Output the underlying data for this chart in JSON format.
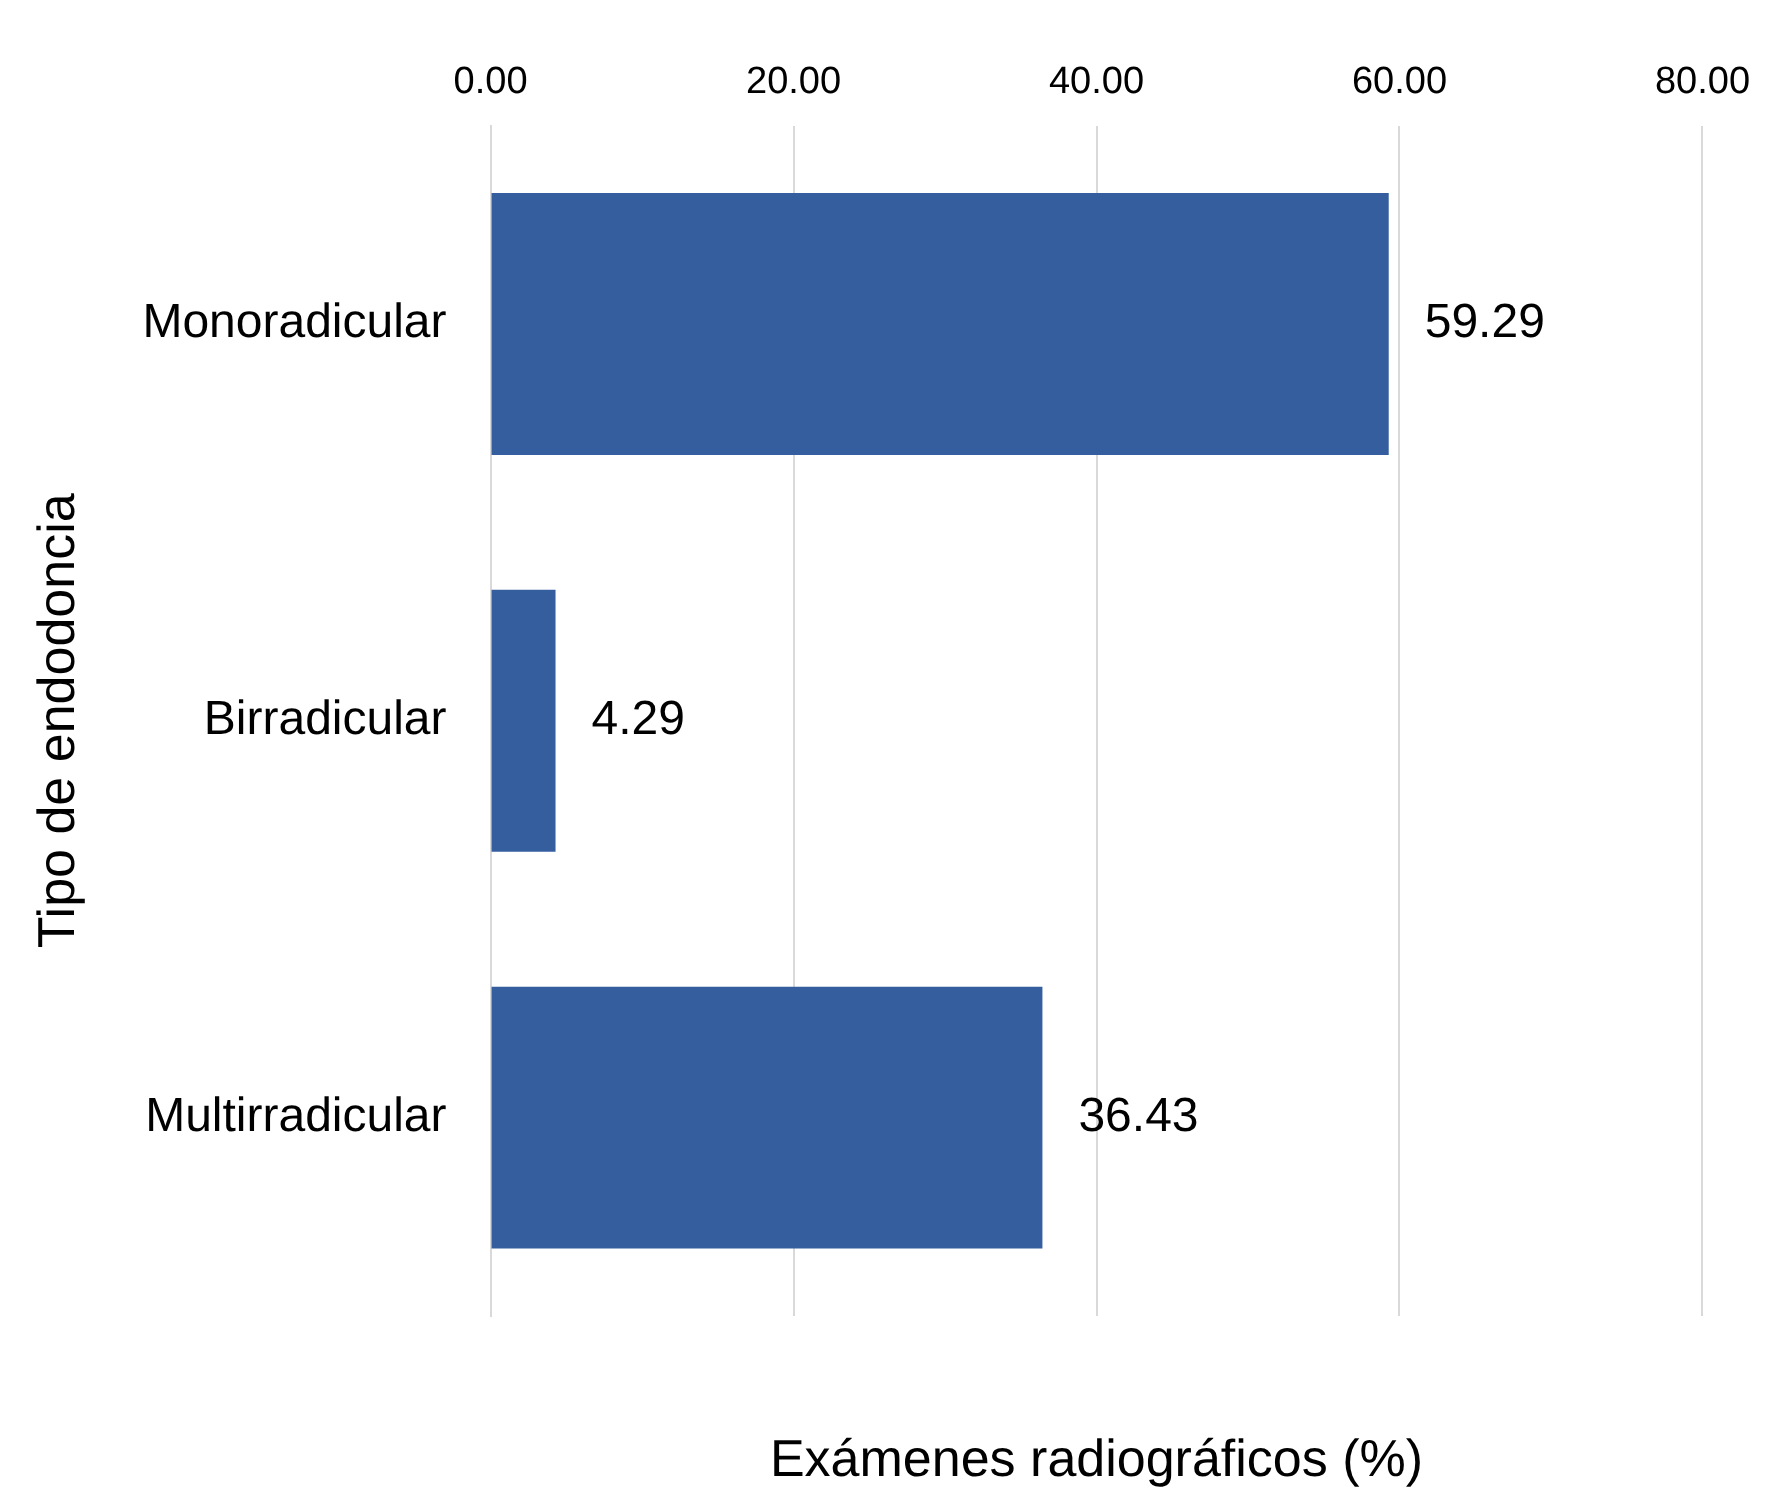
{
  "chart_data": {
    "type": "bar",
    "orientation": "horizontal",
    "xlabel": "Exámenes radiográficos (%)",
    "ylabel": "Tipo de endodoncia",
    "categories": [
      "Monoradicular",
      "Birradicular",
      "Multirradicular"
    ],
    "values": [
      59.29,
      4.29,
      36.43
    ],
    "color": "#355e9f",
    "xlim": [
      0,
      80
    ],
    "xticks": [
      {
        "value": 0,
        "label": "0.00"
      },
      {
        "value": 20,
        "label": "20.00"
      },
      {
        "value": 40,
        "label": "40.00"
      },
      {
        "value": 60,
        "label": "60.00"
      },
      {
        "value": 80,
        "label": "80.00"
      }
    ],
    "grid": "x",
    "data_labels": true
  }
}
